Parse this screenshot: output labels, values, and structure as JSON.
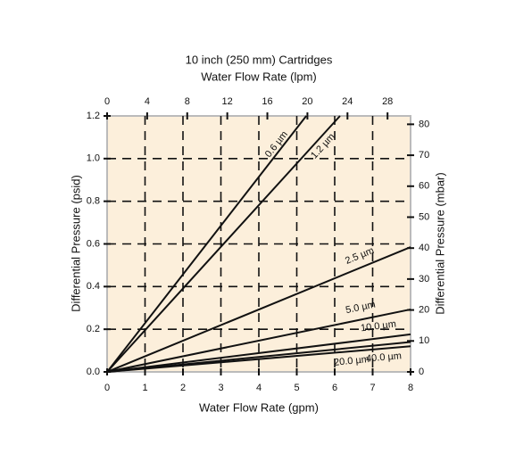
{
  "chart_data": {
    "type": "line",
    "title": "10 inch (250 mm) Cartridges",
    "x2label": "Water Flow Rate (lpm)",
    "xlabel": "Water Flow Rate (gpm)",
    "ylabel": "Differential Pressure (psid)",
    "y2label": "Differential Pressure (mbar)",
    "xlim": [
      0,
      8
    ],
    "xticks": [
      0,
      1,
      2,
      3,
      4,
      5,
      6,
      7,
      8
    ],
    "x2lim": [
      0,
      30.3
    ],
    "x2ticks": [
      0,
      4,
      8,
      12,
      16,
      20,
      24,
      28
    ],
    "ylim": [
      0,
      1.2
    ],
    "yticks": [
      {
        "value": 0,
        "label": "0.0"
      },
      0.2,
      0.4,
      0.6,
      0.8,
      {
        "value": 1,
        "label": "1.0"
      },
      1.2
    ],
    "y2lim": [
      0,
      82.7
    ],
    "y2ticks": [
      0,
      10,
      20,
      30,
      40,
      50,
      60,
      70,
      80
    ],
    "grid": true,
    "background": "#fcefdb",
    "color": "#111111",
    "series": [
      {
        "name": "0.6 µm",
        "x": [
          0,
          5.25
        ],
        "values": [
          0,
          1.2
        ]
      },
      {
        "name": "1.2 µm",
        "x": [
          0,
          6.14
        ],
        "values": [
          0,
          1.2
        ]
      },
      {
        "name": "2.5 µm",
        "x": [
          0,
          8
        ],
        "values": [
          0,
          0.585
        ]
      },
      {
        "name": "5.0 µm",
        "x": [
          0,
          8
        ],
        "values": [
          0,
          0.293
        ]
      },
      {
        "name": "10.0 µm",
        "x": [
          0,
          8
        ],
        "values": [
          0,
          0.176
        ]
      },
      {
        "name": "20.0 µm",
        "x": [
          0,
          8
        ],
        "values": [
          0,
          0.14
        ]
      },
      {
        "name": "40.0 µm",
        "x": [
          0,
          8
        ],
        "values": [
          0,
          0.12
        ]
      }
    ]
  }
}
